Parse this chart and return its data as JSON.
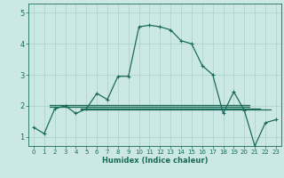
{
  "xlabel": "Humidex (Indice chaleur)",
  "ylabel": "",
  "background_color": "#cce8e4",
  "grid_color": "#aed4d0",
  "line_color": "#1a6b5a",
  "xlim": [
    -0.5,
    23.5
  ],
  "ylim": [
    0.7,
    5.3
  ],
  "yticks": [
    1,
    2,
    3,
    4,
    5
  ],
  "xticks": [
    0,
    1,
    2,
    3,
    4,
    5,
    6,
    7,
    8,
    9,
    10,
    11,
    12,
    13,
    14,
    15,
    16,
    17,
    18,
    19,
    20,
    21,
    22,
    23
  ],
  "series": [
    [
      0,
      1.3
    ],
    [
      1,
      1.1
    ],
    [
      2,
      1.9
    ],
    [
      3,
      2.0
    ],
    [
      4,
      1.75
    ],
    [
      5,
      1.9
    ],
    [
      6,
      2.4
    ],
    [
      7,
      2.2
    ],
    [
      8,
      2.95
    ],
    [
      9,
      2.95
    ],
    [
      10,
      4.55
    ],
    [
      11,
      4.6
    ],
    [
      12,
      4.55
    ],
    [
      13,
      4.45
    ],
    [
      14,
      4.1
    ],
    [
      15,
      4.0
    ],
    [
      16,
      3.3
    ],
    [
      17,
      3.0
    ],
    [
      18,
      1.75
    ],
    [
      19,
      2.45
    ],
    [
      20,
      1.85
    ],
    [
      21,
      0.7
    ],
    [
      22,
      1.45
    ],
    [
      23,
      1.55
    ]
  ],
  "flat_lines": [
    {
      "y": 2.02,
      "x_start": 1.5,
      "x_end": 20.5
    },
    {
      "y": 1.97,
      "x_start": 1.5,
      "x_end": 20.5
    },
    {
      "y": 1.92,
      "x_start": 4.5,
      "x_end": 21.5
    },
    {
      "y": 1.87,
      "x_start": 4.5,
      "x_end": 22.5
    }
  ],
  "marker": "+",
  "marker_size": 3,
  "line_width": 0.9
}
